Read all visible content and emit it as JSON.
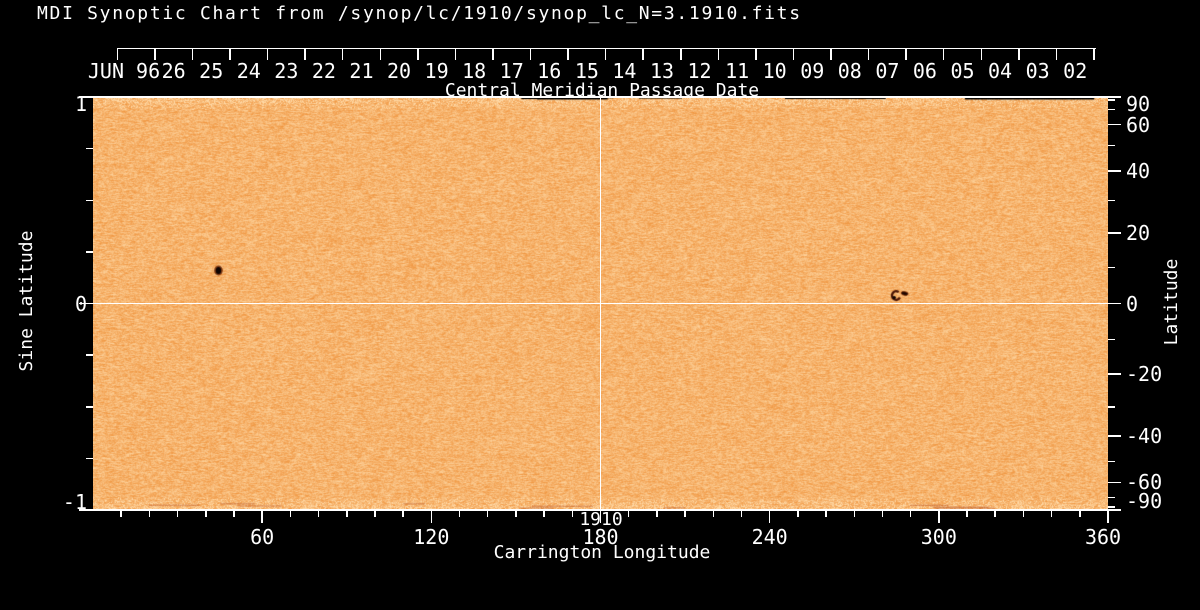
{
  "title": "MDI Synoptic Chart from /synop/lc/1910/synop_lc_N=3.1910.fits",
  "chart_data": {
    "type": "heatmap",
    "title": "MDI Synoptic Chart from /synop/lc/1910/synop_lc_N=3.1910.fits",
    "top_axis": {
      "label": "Central Meridian Passage Date",
      "month_label": "JUN 96",
      "day_labels": [
        "26",
        "25",
        "24",
        "23",
        "22",
        "21",
        "20",
        "19",
        "18",
        "17",
        "16",
        "15",
        "14",
        "13",
        "12",
        "11",
        "10",
        "09",
        "08",
        "07",
        "06",
        "05",
        "04",
        "03",
        "02"
      ]
    },
    "bottom_axis": {
      "label": "Carrington Longitude",
      "rotation_number": "1910",
      "range_deg": [
        0,
        360
      ],
      "minor_tick_step_deg": 10,
      "major_labels": [
        60,
        120,
        180,
        240,
        300,
        360
      ]
    },
    "left_axis": {
      "label": "Sine Latitude",
      "range": [
        -1,
        1
      ],
      "minor_tick_step": 0.25,
      "labels": [
        1,
        0,
        -1
      ]
    },
    "right_axis": {
      "label": "Latitude",
      "range_deg": [
        -90,
        90
      ],
      "scale": "sine",
      "minor_tick_step_deg": 10,
      "labels": [
        90,
        60,
        40,
        20,
        0,
        -20,
        -40,
        -60,
        -90
      ]
    },
    "grid_lines": {
      "vertical_at_longitude_deg": 180,
      "horizontal_at_latitude_deg": 0
    },
    "features": [
      {
        "name": "sunspot",
        "longitude_deg": 44.5,
        "latitude_deg": 9.2,
        "shape": "dark-ellipse"
      },
      {
        "name": "sunspot-group",
        "longitude_deg": 287,
        "latitude_deg": 2.5,
        "shape": "crescent-and-blob"
      }
    ],
    "colors": {
      "background": "#000000",
      "axis": "#ffffff",
      "map_dark": "#ee8f36",
      "map_light": "#ffd9a6",
      "streak_dark": "#aa3c0f",
      "spot_core": "#0d0200",
      "spot_penumbra": "#6b2605",
      "spot_maroon": "#4a1404"
    }
  }
}
